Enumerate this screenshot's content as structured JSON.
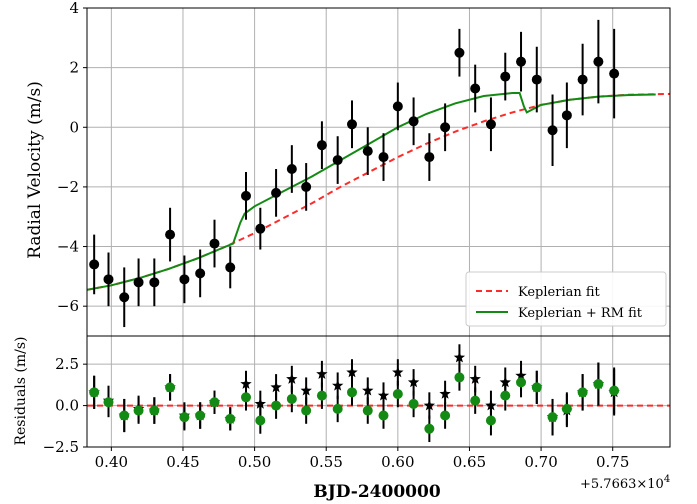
{
  "chart_data": [
    {
      "type": "scatter",
      "panel": "top",
      "title": "",
      "xlabel": "BJD-2400000",
      "ylabel": "Radial Velocity  (m/s)",
      "x_offset_label": "+5.7663×10",
      "x_offset_exponent": "4",
      "xlim": [
        0.383,
        0.79
      ],
      "ylim": [
        -7,
        4
      ],
      "x_ticks": [
        0.4,
        0.45,
        0.5,
        0.55,
        0.6,
        0.65,
        0.7,
        0.75
      ],
      "x_tick_labels": [
        "0.40",
        "0.45",
        "0.50",
        "0.55",
        "0.60",
        "0.65",
        "0.70",
        "0.75"
      ],
      "y_ticks": [
        -6,
        -4,
        -2,
        0,
        2,
        4
      ],
      "y_tick_labels": [
        "−6",
        "−4",
        "−2",
        "0",
        "2",
        "4"
      ],
      "grid": true,
      "legend_position": "lower-right",
      "legend": [
        "Keplerian fit",
        "Keplerian + RM fit"
      ],
      "colors": {
        "data": "#000000",
        "keplerian": "#ff2a2a",
        "rm_fit": "#138a13",
        "grid": "#b0b0b0"
      },
      "observations": [
        {
          "x": 0.388,
          "y": -4.6,
          "err": 1.0
        },
        {
          "x": 0.398,
          "y": -5.1,
          "err": 0.9
        },
        {
          "x": 0.409,
          "y": -5.7,
          "err": 1.0
        },
        {
          "x": 0.419,
          "y": -5.2,
          "err": 0.8
        },
        {
          "x": 0.43,
          "y": -5.2,
          "err": 0.8
        },
        {
          "x": 0.441,
          "y": -3.6,
          "err": 0.9
        },
        {
          "x": 0.451,
          "y": -5.1,
          "err": 0.8
        },
        {
          "x": 0.462,
          "y": -4.9,
          "err": 0.8
        },
        {
          "x": 0.472,
          "y": -3.9,
          "err": 0.8
        },
        {
          "x": 0.483,
          "y": -4.7,
          "err": 0.7
        },
        {
          "x": 0.494,
          "y": -2.3,
          "err": 0.8
        },
        {
          "x": 0.504,
          "y": -3.4,
          "err": 0.7
        },
        {
          "x": 0.515,
          "y": -2.2,
          "err": 0.8
        },
        {
          "x": 0.526,
          "y": -1.4,
          "err": 0.8
        },
        {
          "x": 0.536,
          "y": -2.0,
          "err": 0.8
        },
        {
          "x": 0.547,
          "y": -0.6,
          "err": 0.8
        },
        {
          "x": 0.558,
          "y": -1.1,
          "err": 0.8
        },
        {
          "x": 0.568,
          "y": 0.1,
          "err": 0.8
        },
        {
          "x": 0.579,
          "y": -0.8,
          "err": 0.8
        },
        {
          "x": 0.59,
          "y": -1.0,
          "err": 0.8
        },
        {
          "x": 0.6,
          "y": 0.7,
          "err": 0.8
        },
        {
          "x": 0.611,
          "y": 0.2,
          "err": 0.8
        },
        {
          "x": 0.622,
          "y": -1.0,
          "err": 0.8
        },
        {
          "x": 0.633,
          "y": 0.0,
          "err": 0.8
        },
        {
          "x": 0.643,
          "y": 2.5,
          "err": 0.8
        },
        {
          "x": 0.654,
          "y": 1.3,
          "err": 0.8
        },
        {
          "x": 0.665,
          "y": 0.1,
          "err": 0.9
        },
        {
          "x": 0.675,
          "y": 1.7,
          "err": 0.8
        },
        {
          "x": 0.686,
          "y": 2.2,
          "err": 1.0
        },
        {
          "x": 0.697,
          "y": 1.6,
          "err": 1.1
        },
        {
          "x": 0.708,
          "y": -0.1,
          "err": 1.2
        },
        {
          "x": 0.718,
          "y": 0.4,
          "err": 1.1
        },
        {
          "x": 0.729,
          "y": 1.6,
          "err": 1.2
        },
        {
          "x": 0.74,
          "y": 2.2,
          "err": 1.4
        },
        {
          "x": 0.751,
          "y": 1.8,
          "err": 1.5
        }
      ],
      "keplerian_fit": {
        "x": [
          0.383,
          0.4,
          0.42,
          0.44,
          0.46,
          0.48,
          0.5,
          0.52,
          0.54,
          0.56,
          0.58,
          0.6,
          0.62,
          0.64,
          0.66,
          0.68,
          0.7,
          0.72,
          0.74,
          0.76,
          0.79
        ],
        "y": [
          -5.45,
          -5.3,
          -5.05,
          -4.75,
          -4.4,
          -4.0,
          -3.55,
          -3.05,
          -2.55,
          -2.0,
          -1.5,
          -1.0,
          -0.55,
          -0.15,
          0.2,
          0.5,
          0.75,
          0.92,
          1.03,
          1.09,
          1.12
        ]
      },
      "rm_fit": {
        "x": [
          0.383,
          0.4,
          0.42,
          0.44,
          0.46,
          0.48,
          0.485,
          0.49,
          0.493,
          0.5,
          0.52,
          0.54,
          0.56,
          0.58,
          0.6,
          0.62,
          0.64,
          0.66,
          0.68,
          0.685,
          0.688,
          0.69,
          0.7,
          0.72,
          0.74,
          0.76,
          0.78
        ],
        "y": [
          -5.45,
          -5.3,
          -5.05,
          -4.75,
          -4.4,
          -4.0,
          -3.9,
          -3.2,
          -2.9,
          -2.65,
          -2.15,
          -1.65,
          -1.1,
          -0.55,
          0.0,
          0.45,
          0.8,
          1.05,
          1.15,
          1.15,
          0.7,
          0.5,
          0.75,
          0.92,
          1.03,
          1.08,
          1.1
        ]
      }
    },
    {
      "type": "scatter",
      "panel": "bottom",
      "ylabel": "Residuals (m/s)",
      "xlim": [
        0.383,
        0.79
      ],
      "ylim": [
        -2.5,
        4.2
      ],
      "y_ticks": [
        -2.5,
        0.0,
        2.5
      ],
      "y_tick_labels": [
        "−2.5",
        "0.0",
        "2.5"
      ],
      "x_tick_labels": [
        "0.40",
        "0.45",
        "0.50",
        "0.55",
        "0.60",
        "0.65",
        "0.70",
        "0.75"
      ],
      "zero_line": 0,
      "grid": true,
      "colors": {
        "kepler_residual": "#000000",
        "rm_residual": "#138a13",
        "zero_line": "#ff2a2a"
      },
      "kepler_residuals": [
        {
          "x": 0.388,
          "y": 0.8
        },
        {
          "x": 0.398,
          "y": 0.3
        },
        {
          "x": 0.409,
          "y": -0.6
        },
        {
          "x": 0.419,
          "y": -0.2
        },
        {
          "x": 0.43,
          "y": -0.3
        },
        {
          "x": 0.441,
          "y": 1.1
        },
        {
          "x": 0.451,
          "y": -0.6
        },
        {
          "x": 0.462,
          "y": -0.6
        },
        {
          "x": 0.472,
          "y": 0.2
        },
        {
          "x": 0.483,
          "y": -0.8
        },
        {
          "x": 0.494,
          "y": 1.3
        },
        {
          "x": 0.504,
          "y": 0.1
        },
        {
          "x": 0.515,
          "y": 1.1
        },
        {
          "x": 0.526,
          "y": 1.6
        },
        {
          "x": 0.536,
          "y": 0.9
        },
        {
          "x": 0.547,
          "y": 1.9
        },
        {
          "x": 0.558,
          "y": 1.2
        },
        {
          "x": 0.568,
          "y": 2.0
        },
        {
          "x": 0.579,
          "y": 0.9
        },
        {
          "x": 0.59,
          "y": 0.6
        },
        {
          "x": 0.6,
          "y": 2.0
        },
        {
          "x": 0.611,
          "y": 1.4
        },
        {
          "x": 0.622,
          "y": 0.0
        },
        {
          "x": 0.633,
          "y": 0.7
        },
        {
          "x": 0.643,
          "y": 2.9
        },
        {
          "x": 0.654,
          "y": 1.6
        },
        {
          "x": 0.665,
          "y": 0.0
        },
        {
          "x": 0.675,
          "y": 1.4
        },
        {
          "x": 0.686,
          "y": 1.8
        },
        {
          "x": 0.697,
          "y": 1.1
        },
        {
          "x": 0.708,
          "y": -0.7
        },
        {
          "x": 0.718,
          "y": -0.3
        },
        {
          "x": 0.729,
          "y": 0.8
        },
        {
          "x": 0.74,
          "y": 1.3
        },
        {
          "x": 0.751,
          "y": 0.8
        }
      ],
      "rm_residuals": [
        {
          "x": 0.388,
          "y": 0.8,
          "err": 1.0
        },
        {
          "x": 0.398,
          "y": 0.2,
          "err": 0.9
        },
        {
          "x": 0.409,
          "y": -0.6,
          "err": 1.0
        },
        {
          "x": 0.419,
          "y": -0.3,
          "err": 0.8
        },
        {
          "x": 0.43,
          "y": -0.3,
          "err": 0.8
        },
        {
          "x": 0.441,
          "y": 1.1,
          "err": 0.8
        },
        {
          "x": 0.451,
          "y": -0.7,
          "err": 0.8
        },
        {
          "x": 0.462,
          "y": -0.6,
          "err": 0.8
        },
        {
          "x": 0.472,
          "y": 0.2,
          "err": 0.7
        },
        {
          "x": 0.483,
          "y": -0.8,
          "err": 0.7
        },
        {
          "x": 0.494,
          "y": 0.5,
          "err": 0.8
        },
        {
          "x": 0.504,
          "y": -0.9,
          "err": 0.8
        },
        {
          "x": 0.515,
          "y": 0.0,
          "err": 0.8
        },
        {
          "x": 0.526,
          "y": 0.4,
          "err": 0.8
        },
        {
          "x": 0.536,
          "y": -0.3,
          "err": 0.8
        },
        {
          "x": 0.547,
          "y": 0.6,
          "err": 0.8
        },
        {
          "x": 0.558,
          "y": -0.2,
          "err": 0.8
        },
        {
          "x": 0.568,
          "y": 0.8,
          "err": 0.8
        },
        {
          "x": 0.579,
          "y": -0.3,
          "err": 0.8
        },
        {
          "x": 0.59,
          "y": -0.6,
          "err": 0.8
        },
        {
          "x": 0.6,
          "y": 0.7,
          "err": 0.8
        },
        {
          "x": 0.611,
          "y": 0.1,
          "err": 0.8
        },
        {
          "x": 0.622,
          "y": -1.4,
          "err": 0.8
        },
        {
          "x": 0.633,
          "y": -0.6,
          "err": 0.8
        },
        {
          "x": 0.643,
          "y": 1.7,
          "err": 0.8
        },
        {
          "x": 0.654,
          "y": 0.3,
          "err": 0.8
        },
        {
          "x": 0.665,
          "y": -0.9,
          "err": 0.9
        },
        {
          "x": 0.675,
          "y": 0.6,
          "err": 0.9
        },
        {
          "x": 0.686,
          "y": 1.4,
          "err": 0.9
        },
        {
          "x": 0.697,
          "y": 1.1,
          "err": 1.0
        },
        {
          "x": 0.708,
          "y": -0.7,
          "err": 1.1
        },
        {
          "x": 0.718,
          "y": -0.2,
          "err": 1.0
        },
        {
          "x": 0.729,
          "y": 0.8,
          "err": 1.1
        },
        {
          "x": 0.74,
          "y": 1.3,
          "err": 1.3
        },
        {
          "x": 0.751,
          "y": 0.9,
          "err": 1.4
        }
      ]
    }
  ]
}
